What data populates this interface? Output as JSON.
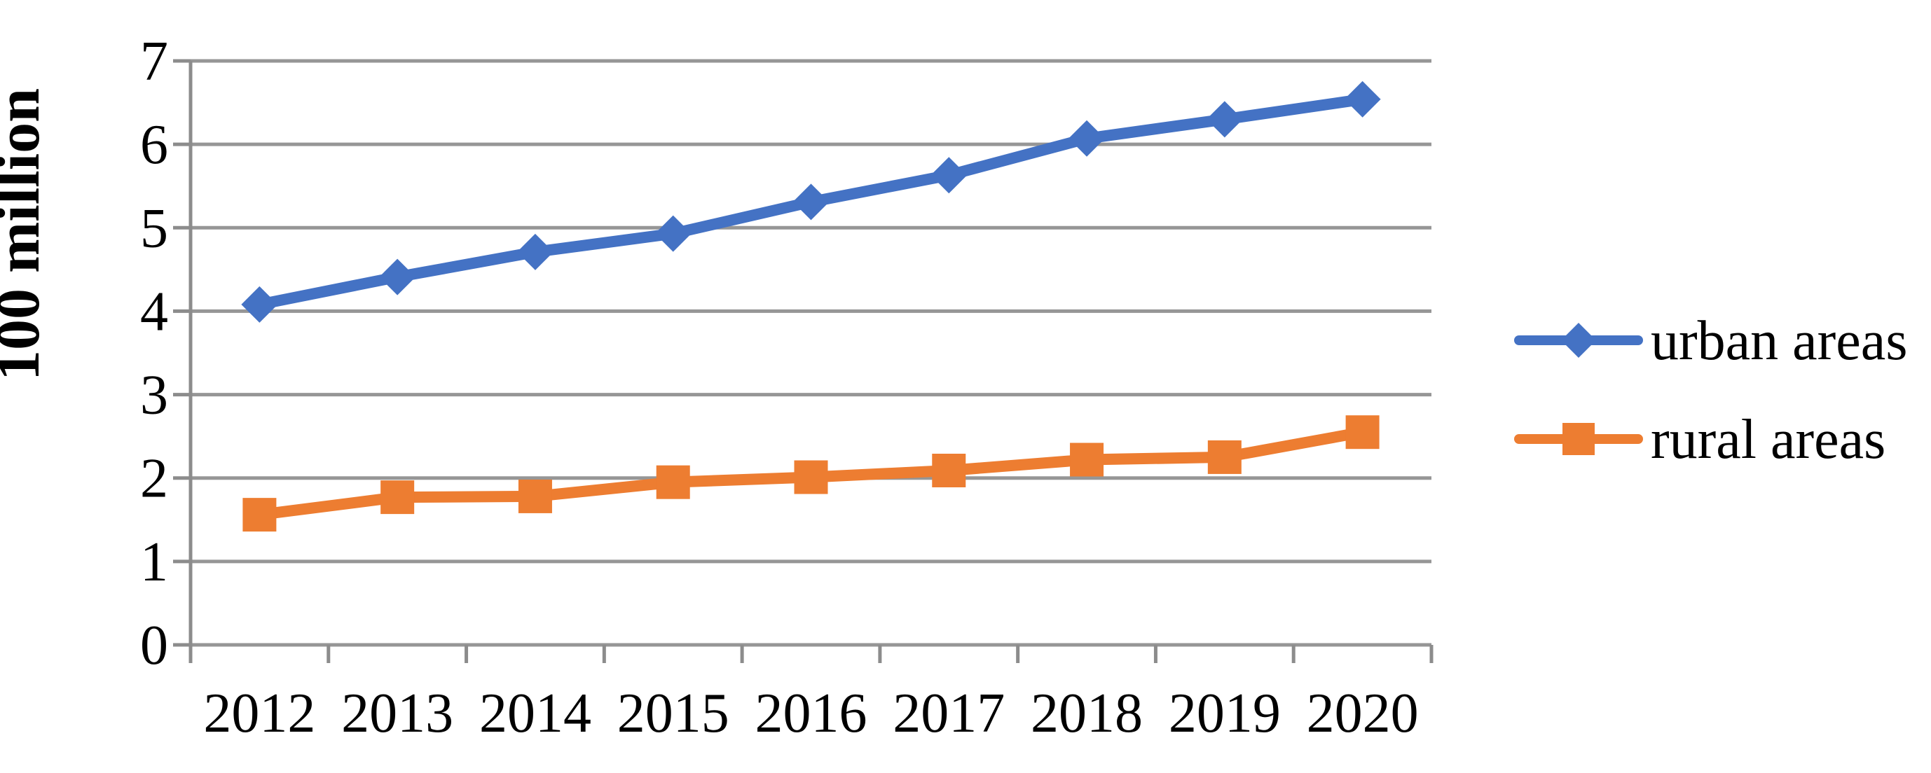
{
  "chart_data": {
    "type": "line",
    "title": "",
    "categories": [
      "2012",
      "2013",
      "2014",
      "2015",
      "2016",
      "2017",
      "2018",
      "2019",
      "2020"
    ],
    "series": [
      {
        "name": "urban areas",
        "color": "#4472C4",
        "marker": "diamond",
        "values": [
          4.08,
          4.41,
          4.71,
          4.93,
          5.31,
          5.63,
          6.07,
          6.3,
          6.54
        ]
      },
      {
        "name": "rural areas",
        "color": "#ED7D31",
        "marker": "square",
        "values": [
          1.56,
          1.77,
          1.78,
          1.95,
          2.01,
          2.09,
          2.22,
          2.25,
          2.55
        ]
      }
    ],
    "xlabel": "",
    "ylabel": "100 million",
    "ylim": [
      0,
      7
    ],
    "ytick_step": 1,
    "yticks": [
      0,
      1,
      2,
      3,
      4,
      5,
      6,
      7
    ],
    "grid": true,
    "legend_position": "right",
    "colors": {
      "gridline": "#969696",
      "axis": "#8C8C8C",
      "text": "#000000",
      "background": "#FFFFFF"
    }
  }
}
